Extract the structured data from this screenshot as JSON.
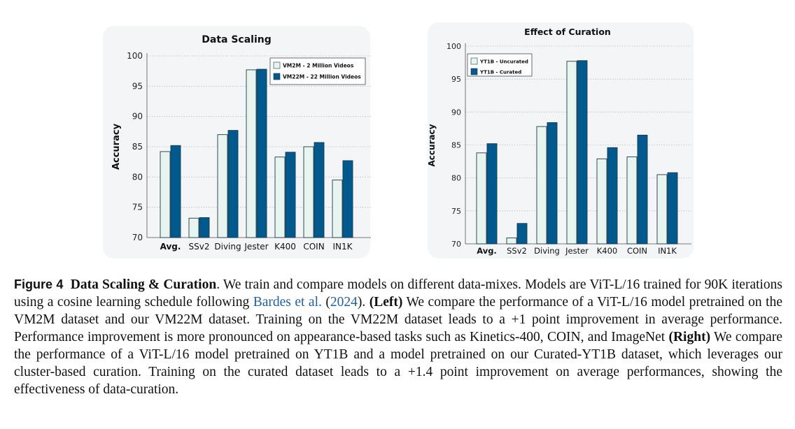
{
  "chart_data": [
    {
      "type": "bar",
      "title": "Data Scaling",
      "xlabel": "",
      "ylabel": "Accuracy",
      "ylim": [
        70,
        100
      ],
      "yticks": [
        70,
        75,
        80,
        85,
        90,
        95,
        100
      ],
      "categories": [
        "Avg.",
        "SSv2",
        "Diving",
        "Jester",
        "K400",
        "COIN",
        "IN1K"
      ],
      "series": [
        {
          "name": "VM2M - 2 Million Videos",
          "color": "#e8f4ee",
          "values": [
            84.2,
            73.2,
            87.0,
            97.7,
            83.3,
            85.0,
            79.5
          ]
        },
        {
          "name": "VM22M - 22 Million Videos",
          "color": "#005a8e",
          "values": [
            85.2,
            73.3,
            87.7,
            97.8,
            84.1,
            85.7,
            82.7
          ]
        }
      ],
      "legend_position": "top-right"
    },
    {
      "type": "bar",
      "title": "Effect of Curation",
      "xlabel": "",
      "ylabel": "Accuracy",
      "ylim": [
        70,
        100
      ],
      "yticks": [
        70,
        75,
        80,
        85,
        90,
        95,
        100
      ],
      "categories": [
        "Avg.",
        "SSv2",
        "Diving",
        "Jester",
        "K400",
        "COIN",
        "IN1K"
      ],
      "series": [
        {
          "name": "YT1B - Uncurated",
          "color": "#e8f4ee",
          "values": [
            83.8,
            70.9,
            87.8,
            97.7,
            82.9,
            83.2,
            80.5
          ]
        },
        {
          "name": "YT1B - Curated",
          "color": "#005a8e",
          "values": [
            85.2,
            73.1,
            88.4,
            97.8,
            84.6,
            86.5,
            80.8
          ]
        }
      ],
      "legend_position": "top-left"
    }
  ],
  "caption": {
    "label": "Figure 4",
    "title": "Data Scaling & Curation",
    "part1": ". We train and compare models on different data-mixes. Models are ViT-L/16 trained for 90K iterations using a cosine learning schedule following ",
    "cite_author": "Bardes et al.",
    "cite_open": " (",
    "cite_year": "2024",
    "cite_close": "). ",
    "left_label": "(Left)",
    "part2": " We compare the performance of a ViT-L/16 model pretrained on the VM2M dataset and our VM22M dataset. Training on the VM22M dataset leads to a +1 point improvement in average performance. Performance improvement is more pronounced on appearance-based tasks such as Kinetics-400, COIN, and ImageNet ",
    "right_label": "(Right)",
    "part3": " We compare the performance of a ViT-L/16 model pretrained on YT1B and a model pretrained on our Curated-YT1B dataset, which leverages our cluster-based curation. Training on the curated dataset leads to a +1.4 point improvement on average performances, showing the effectiveness of data-curation."
  }
}
